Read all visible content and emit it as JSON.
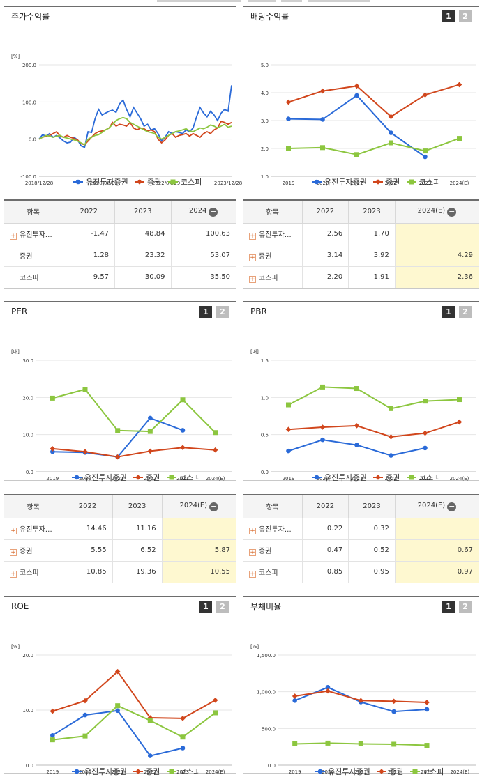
{
  "colors": {
    "s1": "#2a6ad8",
    "s2": "#d1461c",
    "s3": "#8cc63f"
  },
  "pager": {
    "p1": "1",
    "p2": "2"
  },
  "table_headers": {
    "item": "항목",
    "y2022": "2022",
    "y2023": "2023",
    "y2024": "2024",
    "y2024e": "2024(E)"
  },
  "tables": {
    "stock": [
      {
        "name": "유진투자…",
        "v1": "-1.47",
        "v2": "48.84",
        "v3": "100.63"
      },
      {
        "name": "증권",
        "v1": "1.28",
        "v2": "23.32",
        "v3": "53.07"
      },
      {
        "name": "코스피",
        "v1": "9.57",
        "v2": "30.09",
        "v3": "35.50"
      }
    ],
    "dividend": [
      {
        "name": "유진투자…",
        "v1": "2.56",
        "v2": "1.70",
        "v3": ""
      },
      {
        "name": "증권",
        "v1": "3.14",
        "v2": "3.92",
        "v3": "4.29"
      },
      {
        "name": "코스피",
        "v1": "2.20",
        "v2": "1.91",
        "v3": "2.36"
      }
    ],
    "per": [
      {
        "name": "유진투자…",
        "v1": "14.46",
        "v2": "11.16",
        "v3": ""
      },
      {
        "name": "증권",
        "v1": "5.55",
        "v2": "6.52",
        "v3": "5.87"
      },
      {
        "name": "코스피",
        "v1": "10.85",
        "v2": "19.36",
        "v3": "10.55"
      }
    ],
    "pbr": [
      {
        "name": "유진투자…",
        "v1": "0.22",
        "v2": "0.32",
        "v3": ""
      },
      {
        "name": "증권",
        "v1": "0.47",
        "v2": "0.52",
        "v3": "0.67"
      },
      {
        "name": "코스피",
        "v1": "0.85",
        "v2": "0.95",
        "v3": "0.97"
      }
    ]
  },
  "chart_data": [
    {
      "id": "stock",
      "type": "line",
      "title": "주가수익률",
      "unit": "[%]",
      "ylim": [
        -100,
        200
      ],
      "yticks": [
        "-100.0",
        "0.0",
        "100.0",
        "200.0"
      ],
      "xticks": [
        "2018/12/28",
        "2020/08/31",
        "2022/04/29",
        "2023/12/28"
      ],
      "series": [
        {
          "name": "유진투자증권",
          "values": [
            0,
            12,
            8,
            15,
            5,
            10,
            3,
            -5,
            -10,
            -8,
            5,
            -2,
            -18,
            -22,
            20,
            18,
            55,
            80,
            65,
            70,
            75,
            78,
            72,
            95,
            105,
            80,
            60,
            85,
            70,
            55,
            35,
            40,
            25,
            28,
            15,
            -5,
            5,
            20,
            15,
            20,
            18,
            15,
            25,
            20,
            30,
            60,
            85,
            70,
            60,
            75,
            65,
            50,
            70,
            80,
            75,
            145
          ]
        },
        {
          "name": "증권",
          "values": [
            0,
            5,
            8,
            10,
            15,
            20,
            8,
            5,
            10,
            5,
            2,
            -2,
            -12,
            -15,
            -5,
            5,
            15,
            20,
            22,
            25,
            30,
            45,
            35,
            40,
            38,
            35,
            45,
            30,
            25,
            30,
            28,
            22,
            25,
            20,
            0,
            -10,
            -2,
            10,
            15,
            5,
            10,
            12,
            15,
            8,
            15,
            10,
            5,
            15,
            20,
            15,
            25,
            30,
            48,
            45,
            40,
            45
          ]
        },
        {
          "name": "코스피",
          "values": [
            0,
            5,
            10,
            8,
            5,
            8,
            10,
            5,
            3,
            0,
            -2,
            -5,
            -10,
            -15,
            0,
            5,
            10,
            12,
            18,
            25,
            30,
            40,
            50,
            55,
            58,
            55,
            45,
            40,
            35,
            30,
            25,
            20,
            18,
            15,
            5,
            0,
            5,
            10,
            15,
            20,
            22,
            25,
            28,
            22,
            20,
            25,
            30,
            28,
            32,
            38,
            35,
            30,
            35,
            40,
            32,
            35
          ]
        }
      ]
    },
    {
      "id": "dividend",
      "type": "line",
      "title": "배당수익률",
      "unit": "",
      "ylim": [
        1,
        5
      ],
      "yticks": [
        "1.0",
        "2.0",
        "3.0",
        "4.0",
        "5.0"
      ],
      "categories": [
        "2019",
        "2020",
        "2021",
        "2022",
        "2023",
        "2024(E)"
      ],
      "series": [
        {
          "name": "유진투자증권",
          "values": [
            3.06,
            3.04,
            3.9,
            2.56,
            1.7,
            null
          ]
        },
        {
          "name": "증권",
          "values": [
            3.66,
            4.06,
            4.24,
            3.14,
            3.92,
            4.29
          ]
        },
        {
          "name": "코스피",
          "values": [
            2.0,
            2.03,
            1.78,
            2.2,
            1.91,
            2.36
          ]
        }
      ]
    },
    {
      "id": "per",
      "type": "line",
      "title": "PER",
      "unit": "[배]",
      "ylim": [
        0,
        30
      ],
      "yticks": [
        "0.0",
        "10.0",
        "20.0",
        "30.0"
      ],
      "categories": [
        "2019",
        "2020",
        "2021",
        "2022",
        "2023",
        "2024(E)"
      ],
      "series": [
        {
          "name": "유진투자증권",
          "values": [
            5.4,
            5.2,
            4.0,
            14.46,
            11.16,
            null
          ]
        },
        {
          "name": "증권",
          "values": [
            6.2,
            5.4,
            4.0,
            5.55,
            6.52,
            5.87
          ]
        },
        {
          "name": "코스피",
          "values": [
            19.8,
            22.2,
            11.1,
            10.85,
            19.36,
            10.55
          ]
        }
      ]
    },
    {
      "id": "pbr",
      "type": "line",
      "title": "PBR",
      "unit": "[배]",
      "ylim": [
        0,
        1.5
      ],
      "yticks": [
        "0.0",
        "0.5",
        "1.0",
        "1.5"
      ],
      "categories": [
        "2019",
        "2020",
        "2021",
        "2022",
        "2023",
        "2024(E)"
      ],
      "series": [
        {
          "name": "유진투자증권",
          "values": [
            0.28,
            0.43,
            0.36,
            0.22,
            0.32,
            null
          ]
        },
        {
          "name": "증권",
          "values": [
            0.57,
            0.6,
            0.62,
            0.47,
            0.52,
            0.67
          ]
        },
        {
          "name": "코스피",
          "values": [
            0.9,
            1.14,
            1.12,
            0.85,
            0.95,
            0.97
          ]
        }
      ]
    },
    {
      "id": "roe",
      "type": "line",
      "title": "ROE",
      "unit": "[%]",
      "ylim": [
        0,
        20
      ],
      "yticks": [
        "0.0",
        "10.0",
        "20.0"
      ],
      "categories": [
        "2019",
        "2020",
        "2021",
        "2022",
        "2023",
        "2024(E)"
      ],
      "series": [
        {
          "name": "유진투자증권",
          "values": [
            5.4,
            9.1,
            9.9,
            1.7,
            3.1,
            null
          ]
        },
        {
          "name": "증권",
          "values": [
            9.8,
            11.7,
            17.0,
            8.6,
            8.5,
            11.8
          ]
        },
        {
          "name": "코스피",
          "values": [
            4.6,
            5.3,
            10.8,
            8.1,
            5.1,
            9.5
          ]
        }
      ]
    },
    {
      "id": "debt",
      "type": "line",
      "title": "부채비율",
      "unit": "[%]",
      "ylim": [
        0,
        1500
      ],
      "yticks": [
        "0.0",
        "500.0",
        "1,000.0",
        "1,500.0"
      ],
      "categories": [
        "2019",
        "2020",
        "2021",
        "2022",
        "2023",
        "2024(E)"
      ],
      "series": [
        {
          "name": "유진투자증권",
          "values": [
            880,
            1060,
            860,
            730,
            760,
            null
          ]
        },
        {
          "name": "증권",
          "values": [
            940,
            1010,
            880,
            870,
            855,
            null
          ]
        },
        {
          "name": "코스피",
          "values": [
            290,
            300,
            290,
            285,
            270,
            null
          ]
        }
      ]
    }
  ]
}
